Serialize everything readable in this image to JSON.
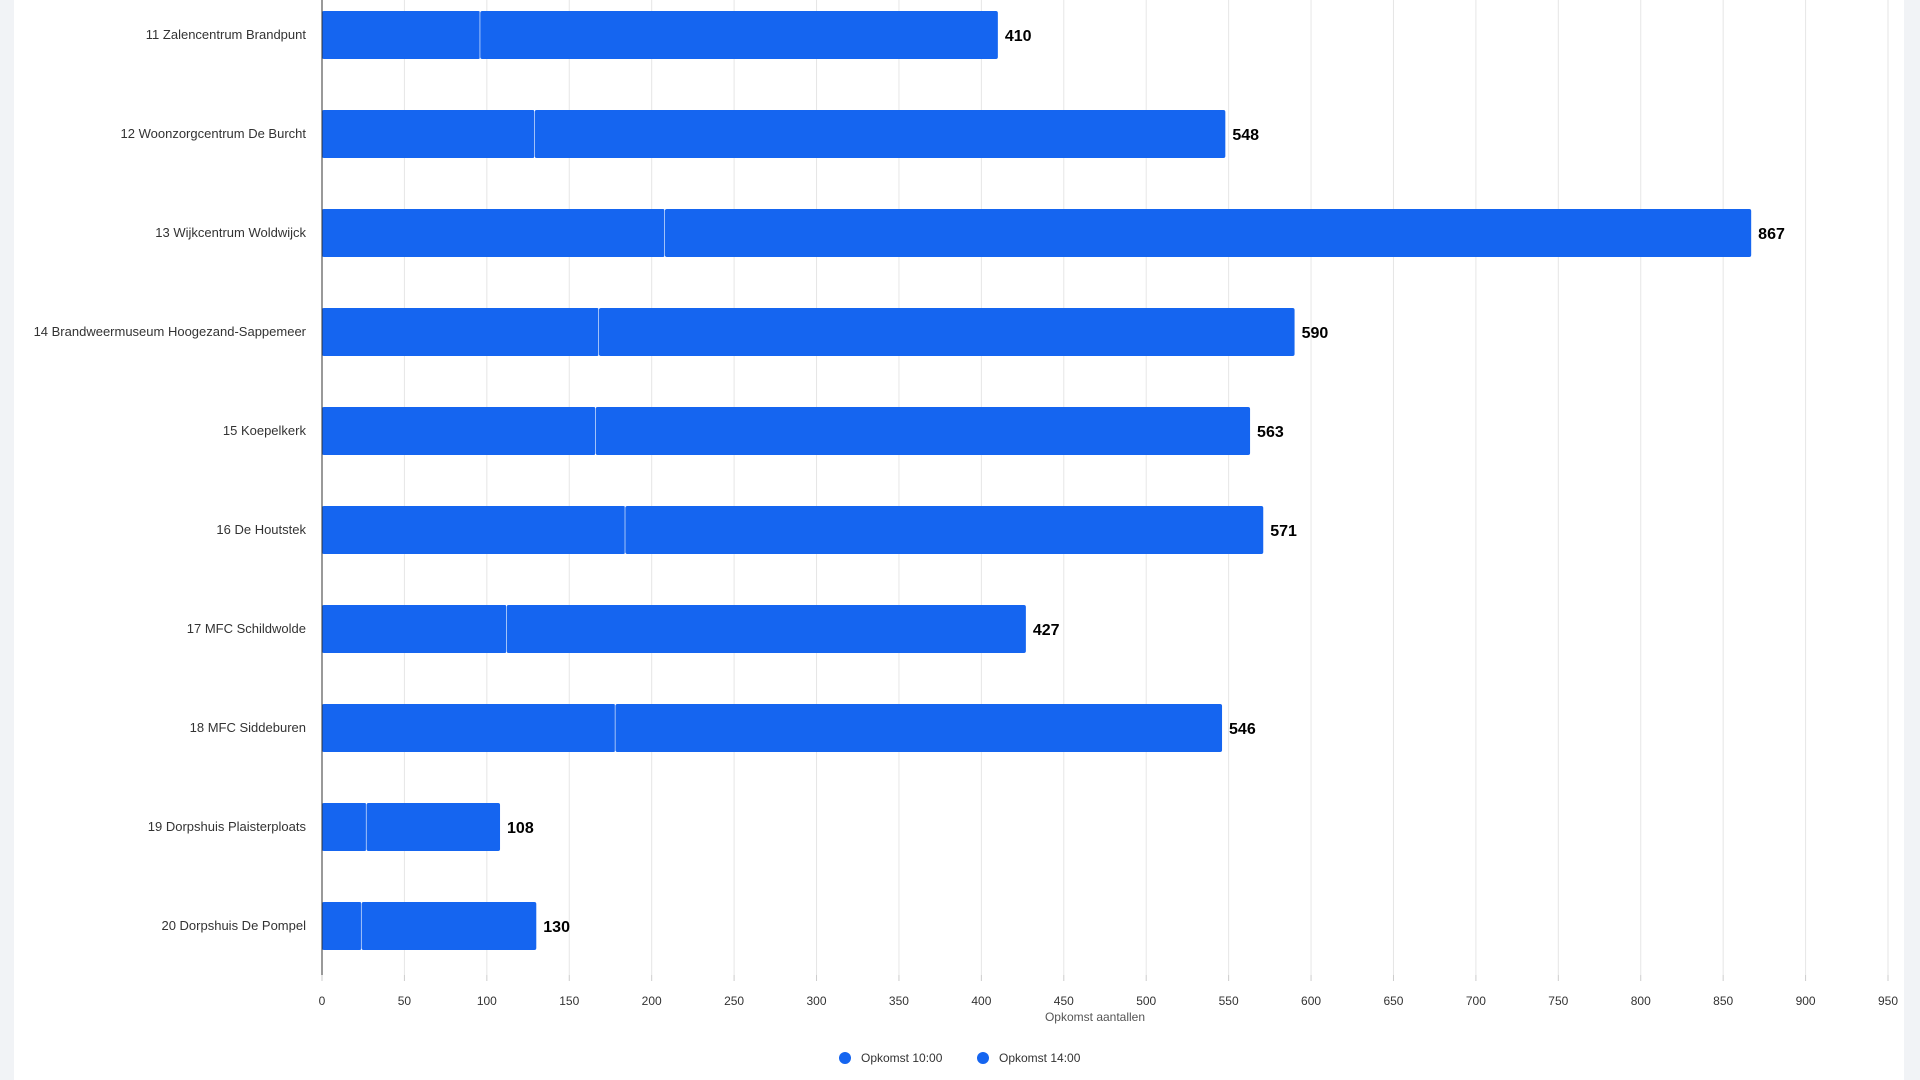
{
  "colors": {
    "series_10": "#1565f0",
    "series_14": "#1565f0",
    "grid": "#e6e6e6",
    "axis": "#333333",
    "segment_divider": "#ffffff"
  },
  "chart_data": {
    "type": "bar",
    "orientation": "horizontal",
    "stacked": true,
    "categories": [
      "11 Zalencentrum Brandpunt",
      "12 Woonzorgcentrum De Burcht",
      "13 Wijkcentrum Woldwijck",
      "14 Brandweermuseum Hoogezand-Sappemeer",
      "15 Koepelkerk",
      "16 De Houtstek",
      "17 MFC Schildwolde",
      "18 MFC Siddeburen",
      "19 Dorpshuis Plaisterploats",
      "20 Dorpshuis De Pompel"
    ],
    "series": [
      {
        "name": "Opkomst 10:00",
        "values": [
          96,
          129,
          208,
          168,
          166,
          184,
          112,
          178,
          27,
          24
        ]
      },
      {
        "name": "Opkomst 14:00",
        "values": [
          314,
          419,
          659,
          422,
          397,
          387,
          315,
          368,
          81,
          106
        ]
      }
    ],
    "totals": [
      410,
      548,
      867,
      590,
      563,
      571,
      427,
      546,
      108,
      130
    ],
    "total_labels": [
      "410",
      "548",
      "867",
      "590",
      "563",
      "571",
      "427",
      "546",
      "108",
      "130"
    ],
    "xlabel": "Opkomst aantallen",
    "xlim": [
      0,
      950
    ],
    "xticks": [
      0,
      50,
      100,
      150,
      200,
      250,
      300,
      350,
      400,
      450,
      500,
      550,
      600,
      650,
      700,
      750,
      800,
      850,
      900,
      950
    ],
    "xtick_labels": [
      "0",
      "50",
      "100",
      "150",
      "200",
      "250",
      "300",
      "350",
      "400",
      "450",
      "500",
      "550",
      "600",
      "650",
      "700",
      "750",
      "800",
      "850",
      "900",
      "950"
    ],
    "grid": true,
    "legend_position": "bottom-center"
  }
}
